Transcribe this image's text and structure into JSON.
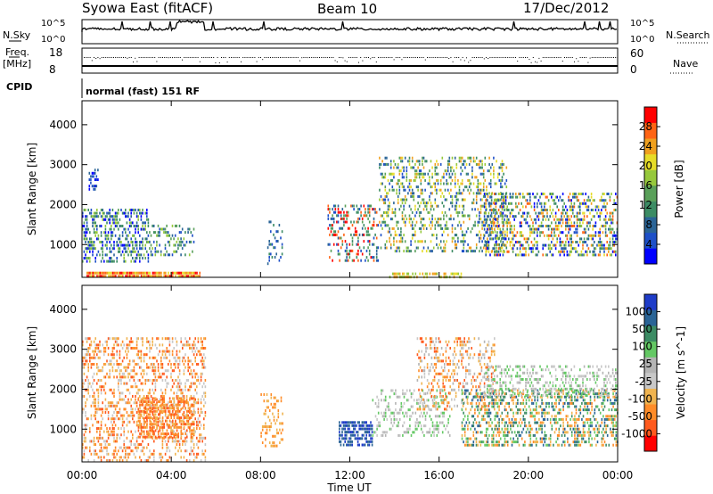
{
  "header": {
    "title": "Syowa East (fitACF)",
    "beam": "Beam 10",
    "date": "17/Dec/2012"
  },
  "status_panel": {
    "nsky_label": "N.Sky",
    "nsky_ticks": [
      "10^5",
      "10^0"
    ],
    "nsearch_label": "N.Search",
    "nsearch_ticks": [
      "10^5",
      "10^0"
    ],
    "freq_label": "Freq.",
    "freq_unit": "[MHz]",
    "freq_ticks": [
      "18",
      "8"
    ],
    "nave_label": "Nave",
    "nave_ticks": [
      "60",
      "0"
    ],
    "cpid_label": "CPID",
    "cpid_text": "normal (fast) 151 RF"
  },
  "chart_data": [
    {
      "type": "heatmap",
      "name": "power",
      "ylabel": "Slant Range [km]",
      "xlabel": "Time UT",
      "xticks": [
        "00:00",
        "04:00",
        "08:00",
        "12:00",
        "16:00",
        "20:00",
        "00:00"
      ],
      "xlim": [
        0,
        24
      ],
      "yticks": [
        1000,
        2000,
        3000,
        4000
      ],
      "ylim": [
        180,
        4600
      ],
      "colorbar": {
        "label": "Power [dB]",
        "ticks": [
          "4",
          "8",
          "12",
          "16",
          "20",
          "24",
          "28"
        ],
        "range": [
          0,
          32
        ],
        "colors": [
          "#0000ff",
          "#1e50c8",
          "#2a6496",
          "#3c8c64",
          "#5aa05a",
          "#96c83c",
          "#e6dc28",
          "#f0a01e",
          "#ff6414",
          "#ff0000"
        ]
      },
      "regions": [
        {
          "t": [
            0.2,
            5.3
          ],
          "r": [
            200,
            320
          ],
          "levels": [
            6,
            7,
            8,
            9
          ],
          "density": 0.9
        },
        {
          "t": [
            0.0,
            3.0
          ],
          "r": [
            600,
            1900
          ],
          "levels": [
            0,
            1,
            2,
            3,
            4,
            5
          ],
          "density": 0.45
        },
        {
          "t": [
            3.0,
            5.0
          ],
          "r": [
            700,
            1500
          ],
          "levels": [
            1,
            2,
            3,
            4,
            5
          ],
          "density": 0.3
        },
        {
          "t": [
            0.3,
            0.8
          ],
          "r": [
            2400,
            2900
          ],
          "levels": [
            0,
            1,
            2
          ],
          "density": 0.4
        },
        {
          "t": [
            8.3,
            9.0
          ],
          "r": [
            500,
            1600
          ],
          "levels": [
            1,
            2,
            3
          ],
          "density": 0.2
        },
        {
          "t": [
            11.0,
            13.3
          ],
          "r": [
            600,
            2000
          ],
          "levels": [
            1,
            2,
            3,
            4,
            8,
            9
          ],
          "density": 0.35
        },
        {
          "t": [
            13.7,
            17.0
          ],
          "r": [
            200,
            300
          ],
          "levels": [
            5,
            6,
            7
          ],
          "density": 0.5
        },
        {
          "t": [
            13.3,
            19.0
          ],
          "r": [
            800,
            3200
          ],
          "levels": [
            1,
            2,
            3,
            4,
            5,
            6,
            7
          ],
          "density": 0.3
        },
        {
          "t": [
            18.0,
            24.0
          ],
          "r": [
            700,
            2300
          ],
          "levels": [
            0,
            1,
            2,
            3,
            4,
            5,
            6,
            7,
            8
          ],
          "density": 0.45
        }
      ]
    },
    {
      "type": "heatmap",
      "name": "velocity",
      "ylabel": "Slant Range [km]",
      "xlabel": "Time UT",
      "xticks": [
        "00:00",
        "04:00",
        "08:00",
        "12:00",
        "16:00",
        "20:00",
        "00:00"
      ],
      "xlim": [
        0,
        24
      ],
      "yticks": [
        1000,
        2000,
        3000,
        4000
      ],
      "ylim": [
        180,
        4600
      ],
      "colorbar": {
        "label": "Velocity [m s^-1]",
        "ticks": [
          "1000",
          "500",
          "100",
          "25",
          "-25",
          "-100",
          "-500",
          "-1000"
        ],
        "range": [
          -1200,
          1200
        ],
        "colors": [
          "#ff0000",
          "#ff5a1e",
          "#ff8c28",
          "#f0b450",
          "#c8c8c8",
          "#b4b4b4",
          "#64c864",
          "#3c8c64",
          "#2a6496",
          "#1e3cc8"
        ]
      },
      "regions": [
        {
          "t": [
            0.0,
            5.5
          ],
          "r": [
            200,
            3300
          ],
          "levels": [
            1,
            2,
            3,
            4
          ],
          "density": 0.35
        },
        {
          "t": [
            2.5,
            5.0
          ],
          "r": [
            800,
            1800
          ],
          "levels": [
            1,
            2,
            3
          ],
          "density": 0.6
        },
        {
          "t": [
            8.0,
            9.0
          ],
          "r": [
            600,
            1900
          ],
          "levels": [
            2,
            3
          ],
          "density": 0.3
        },
        {
          "t": [
            11.5,
            13.0
          ],
          "r": [
            600,
            1200
          ],
          "levels": [
            8,
            9
          ],
          "density": 0.7
        },
        {
          "t": [
            13.0,
            16.5
          ],
          "r": [
            800,
            2000
          ],
          "levels": [
            4,
            5,
            6
          ],
          "density": 0.25
        },
        {
          "t": [
            15.0,
            18.5
          ],
          "r": [
            1500,
            3300
          ],
          "levels": [
            1,
            2,
            3,
            4,
            5
          ],
          "density": 0.3
        },
        {
          "t": [
            17.0,
            24.0
          ],
          "r": [
            600,
            2000
          ],
          "levels": [
            6,
            7,
            8,
            2,
            3
          ],
          "density": 0.45
        },
        {
          "t": [
            18.0,
            24.0
          ],
          "r": [
            1800,
            2600
          ],
          "levels": [
            4,
            5,
            6
          ],
          "density": 0.35
        }
      ]
    }
  ]
}
